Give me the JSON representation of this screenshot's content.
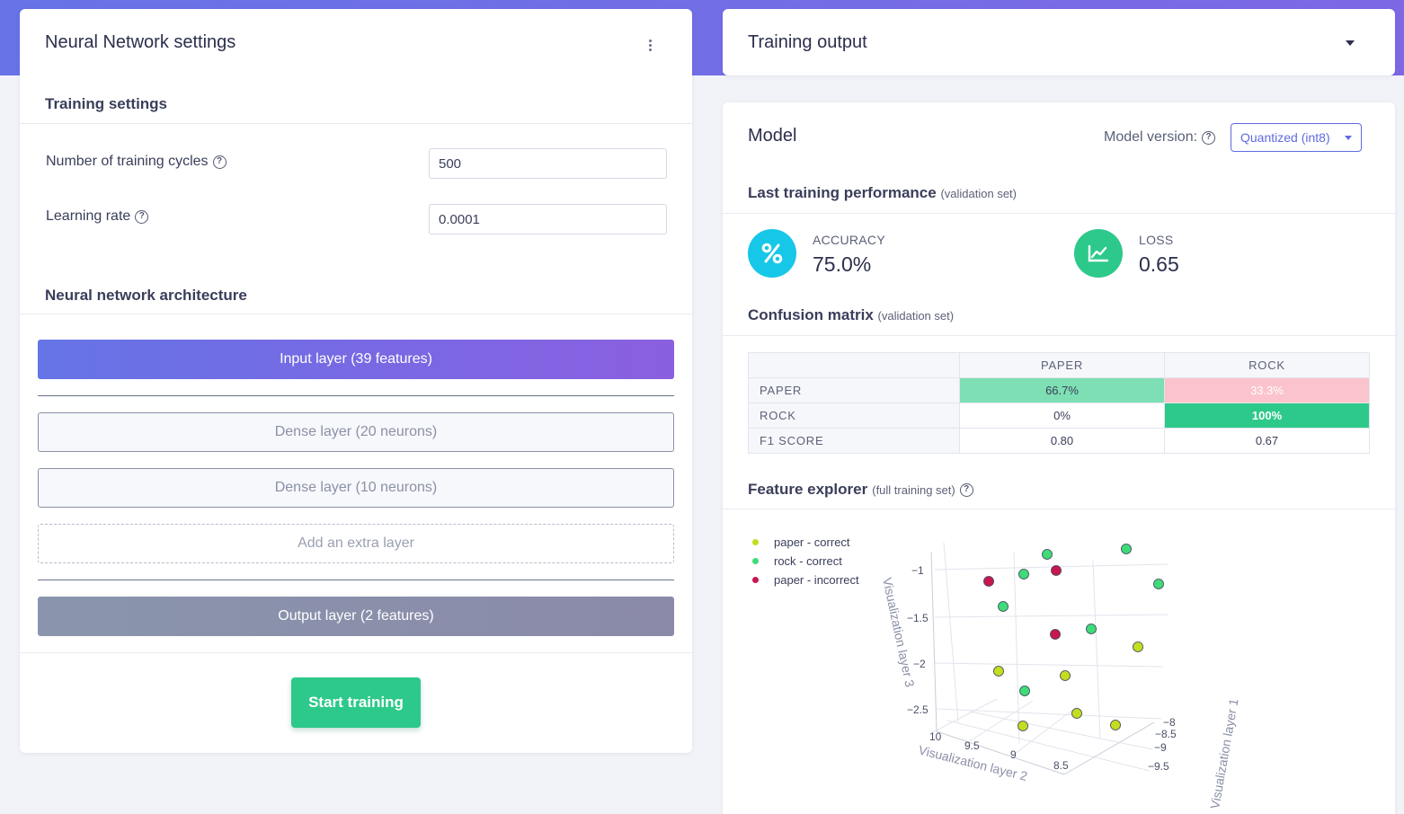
{
  "nn_settings": {
    "title": "Neural Network settings",
    "training_settings": {
      "title": "Training settings",
      "cycles_label": "Number of training cycles",
      "cycles_value": "500",
      "lr_label": "Learning rate",
      "lr_value": "0.0001"
    },
    "architecture": {
      "title": "Neural network architecture",
      "input_layer": "Input layer (39 features)",
      "dense_1": "Dense layer (20 neurons)",
      "dense_2": "Dense layer (10 neurons)",
      "add_layer": "Add an extra layer",
      "output_layer": "Output layer (2 features)"
    },
    "start_button": "Start training"
  },
  "training_output": {
    "title": "Training output"
  },
  "model": {
    "title": "Model",
    "version_label": "Model version:",
    "version_selected": "Quantized (int8)",
    "performance": {
      "title": "Last training performance",
      "note": "(validation set)",
      "accuracy_label": "ACCURACY",
      "accuracy_value": "75.0%",
      "loss_label": "LOSS",
      "loss_value": "0.65"
    },
    "confusion": {
      "title": "Confusion matrix",
      "note": "(validation set)",
      "columns": [
        "PAPER",
        "ROCK"
      ],
      "rows": [
        {
          "label": "PAPER",
          "cells": [
            "66.7%",
            "33.3%"
          ]
        },
        {
          "label": "ROCK",
          "cells": [
            "0%",
            "100%"
          ]
        },
        {
          "label": "F1 SCORE",
          "cells": [
            "0.80",
            "0.67"
          ]
        }
      ],
      "colors": {
        "good": "#7ddfb3",
        "bad": "#fbc3cc",
        "best": "#2dc98a"
      }
    },
    "feature_explorer": {
      "title": "Feature explorer",
      "note": "(full training set)",
      "legend": [
        {
          "label": "paper - correct",
          "color": "#c4dd1e"
        },
        {
          "label": "rock - correct",
          "color": "#3fdb77"
        },
        {
          "label": "paper - incorrect",
          "color": "#c8174f"
        }
      ],
      "axis_labels": {
        "z": "Visualization layer 3",
        "x": "Visualization layer 2",
        "y": "Visualization layer 1"
      },
      "z_ticks": [
        "−1",
        "−1.5",
        "−2",
        "−2.5"
      ],
      "x_ticks": [
        "10",
        "9.5",
        "9",
        "8.5"
      ],
      "y_ticks": [
        "−8",
        "−8.5",
        "−9",
        "−9.5"
      ]
    }
  }
}
